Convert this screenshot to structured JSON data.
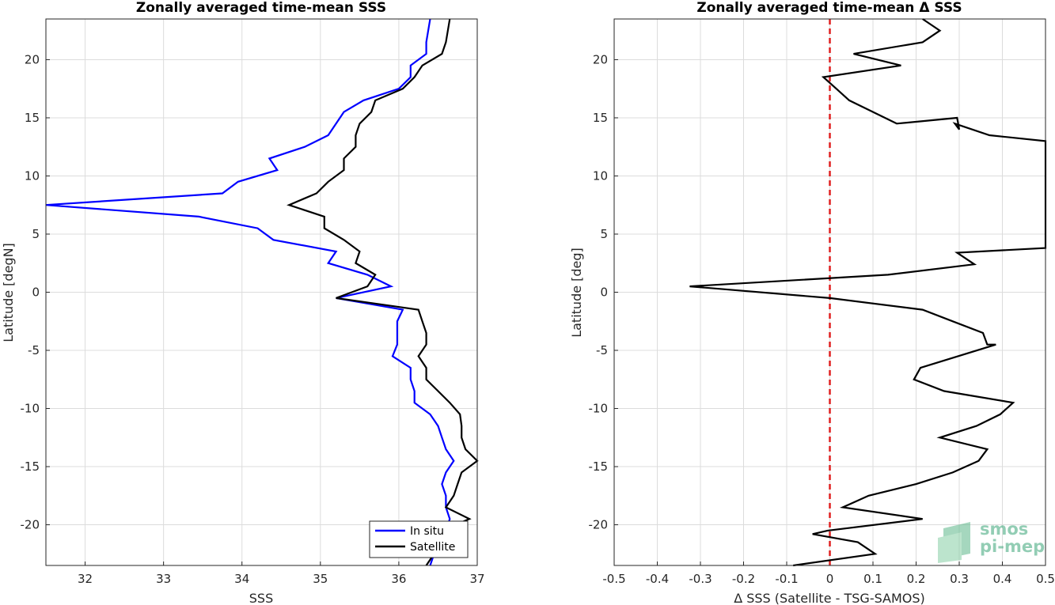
{
  "chart_data": [
    {
      "type": "line",
      "title": "Zonally averaged time-mean SSS",
      "xlabel": "SSS",
      "ylabel": "Latitude [degN]",
      "xlim": [
        31.5,
        37
      ],
      "ylim": [
        -23.5,
        23.5
      ],
      "xticks": [
        32,
        33,
        34,
        35,
        36,
        37
      ],
      "yticks": [
        -20,
        -15,
        -10,
        -5,
        0,
        5,
        10,
        15,
        20
      ],
      "grid": true,
      "legend": "bottom-right",
      "series": [
        {
          "name": "In situ",
          "color": "#0000ff",
          "points": [
            [
              36.4,
              23.5
            ],
            [
              36.35,
              21.5
            ],
            [
              36.35,
              20.5
            ],
            [
              36.15,
              19.5
            ],
            [
              36.15,
              18.5
            ],
            [
              36.0,
              17.5
            ],
            [
              35.55,
              16.5
            ],
            [
              35.3,
              15.5
            ],
            [
              35.1,
              13.5
            ],
            [
              34.8,
              12.5
            ],
            [
              34.35,
              11.5
            ],
            [
              34.45,
              10.5
            ],
            [
              33.95,
              9.5
            ],
            [
              33.75,
              8.5
            ],
            [
              31.5,
              7.5
            ],
            [
              33.45,
              6.5
            ],
            [
              34.2,
              5.5
            ],
            [
              34.4,
              4.5
            ],
            [
              35.2,
              3.5
            ],
            [
              35.1,
              2.5
            ],
            [
              35.6,
              1.5
            ],
            [
              35.9,
              0.5
            ],
            [
              35.2,
              -0.5
            ],
            [
              36.05,
              -1.5
            ],
            [
              35.98,
              -2.5
            ],
            [
              35.98,
              -3.5
            ],
            [
              35.98,
              -4.5
            ],
            [
              35.92,
              -5.5
            ],
            [
              36.15,
              -6.5
            ],
            [
              36.15,
              -7.5
            ],
            [
              36.2,
              -8.5
            ],
            [
              36.2,
              -9.5
            ],
            [
              36.4,
              -10.5
            ],
            [
              36.5,
              -11.5
            ],
            [
              36.55,
              -12.5
            ],
            [
              36.6,
              -13.5
            ],
            [
              36.7,
              -14.5
            ],
            [
              36.6,
              -15.5
            ],
            [
              36.55,
              -16.5
            ],
            [
              36.6,
              -17.5
            ],
            [
              36.6,
              -18.5
            ],
            [
              36.65,
              -19.5
            ],
            [
              36.6,
              -20.5
            ],
            [
              36.45,
              -21.5
            ],
            [
              36.45,
              -22.5
            ],
            [
              36.4,
              -23.5
            ]
          ]
        },
        {
          "name": "Satellite",
          "color": "#000000",
          "points": [
            [
              36.65,
              23.5
            ],
            [
              36.6,
              21.5
            ],
            [
              36.55,
              20.5
            ],
            [
              36.3,
              19.5
            ],
            [
              36.2,
              18.5
            ],
            [
              36.05,
              17.5
            ],
            [
              35.7,
              16.5
            ],
            [
              35.65,
              15.5
            ],
            [
              35.5,
              14.5
            ],
            [
              35.45,
              13.5
            ],
            [
              35.45,
              12.5
            ],
            [
              35.3,
              11.5
            ],
            [
              35.3,
              10.5
            ],
            [
              35.1,
              9.5
            ],
            [
              34.95,
              8.5
            ],
            [
              34.6,
              7.5
            ],
            [
              35.05,
              6.5
            ],
            [
              35.05,
              5.5
            ],
            [
              35.3,
              4.5
            ],
            [
              35.5,
              3.5
            ],
            [
              35.45,
              2.5
            ],
            [
              35.7,
              1.5
            ],
            [
              35.6,
              0.5
            ],
            [
              35.2,
              -0.5
            ],
            [
              36.25,
              -1.5
            ],
            [
              36.3,
              -2.5
            ],
            [
              36.35,
              -3.5
            ],
            [
              36.35,
              -4.5
            ],
            [
              36.25,
              -5.5
            ],
            [
              36.35,
              -6.5
            ],
            [
              36.35,
              -7.5
            ],
            [
              36.5,
              -8.5
            ],
            [
              36.65,
              -9.5
            ],
            [
              36.78,
              -10.5
            ],
            [
              36.8,
              -11.5
            ],
            [
              36.8,
              -12.5
            ],
            [
              36.85,
              -13.5
            ],
            [
              37.0,
              -14.5
            ],
            [
              36.8,
              -15.5
            ],
            [
              36.75,
              -16.5
            ],
            [
              36.7,
              -17.5
            ],
            [
              36.6,
              -18.5
            ],
            [
              36.9,
              -19.5
            ],
            [
              36.55,
              -20.5
            ],
            [
              36.5,
              -21.5
            ],
            [
              36.45,
              -22.5
            ],
            [
              36.35,
              -23.5
            ]
          ]
        }
      ]
    },
    {
      "type": "line",
      "title": "Zonally averaged time-mean Δ SSS",
      "xlabel": "Δ SSS (Satellite - TSG-SAMOS)",
      "ylabel": "Latitude [deg]",
      "xlim": [
        -0.5,
        0.5
      ],
      "ylim": [
        -23.5,
        23.5
      ],
      "xticks": [
        -0.5,
        -0.4,
        -0.3,
        -0.2,
        -0.1,
        0,
        0.1,
        0.2,
        0.3,
        0.4,
        0.5
      ],
      "yticks": [
        -20,
        -15,
        -10,
        -5,
        0,
        5,
        10,
        15,
        20
      ],
      "grid": true,
      "reference_line": {
        "x": 0,
        "color": "#e02020",
        "style": "dashed"
      },
      "series": [
        {
          "color": "#000000",
          "points": [
            [
              0.215,
              23.5
            ],
            [
              0.255,
              22.5
            ],
            [
              0.215,
              21.5
            ],
            [
              0.055,
              20.5
            ],
            [
              0.165,
              19.5
            ],
            [
              -0.015,
              18.5
            ],
            [
              0.015,
              17.5
            ],
            [
              0.045,
              16.5
            ],
            [
              0.155,
              14.5
            ],
            [
              0.295,
              15.0
            ],
            [
              0.3,
              14.0
            ],
            [
              0.29,
              14.5
            ],
            [
              0.37,
              13.5
            ],
            [
              0.5,
              13.0
            ],
            [
              0.5,
              3.8
            ],
            [
              0.295,
              3.4
            ],
            [
              0.335,
              2.4
            ],
            [
              0.135,
              1.5
            ],
            [
              -0.325,
              0.5
            ],
            [
              0.0,
              -0.5
            ],
            [
              0.215,
              -1.5
            ],
            [
              0.285,
              -2.5
            ],
            [
              0.355,
              -3.5
            ],
            [
              0.365,
              -4.5
            ],
            [
              0.385,
              -4.5
            ],
            [
              0.21,
              -6.5
            ],
            [
              0.195,
              -7.5
            ],
            [
              0.265,
              -8.5
            ],
            [
              0.425,
              -9.5
            ],
            [
              0.395,
              -10.5
            ],
            [
              0.34,
              -11.5
            ],
            [
              0.255,
              -12.5
            ],
            [
              0.365,
              -13.5
            ],
            [
              0.345,
              -14.5
            ],
            [
              0.285,
              -15.5
            ],
            [
              0.2,
              -16.5
            ],
            [
              0.09,
              -17.5
            ],
            [
              0.03,
              -18.5
            ],
            [
              0.215,
              -19.5
            ],
            [
              -0.005,
              -20.5
            ],
            [
              -0.04,
              -20.8
            ],
            [
              0.065,
              -21.5
            ],
            [
              0.105,
              -22.5
            ],
            [
              -0.085,
              -23.5
            ]
          ]
        }
      ]
    }
  ],
  "legend": {
    "items": [
      "In situ",
      "Satellite"
    ]
  },
  "watermark": {
    "line1": "smos",
    "line2": "pi-mep"
  }
}
